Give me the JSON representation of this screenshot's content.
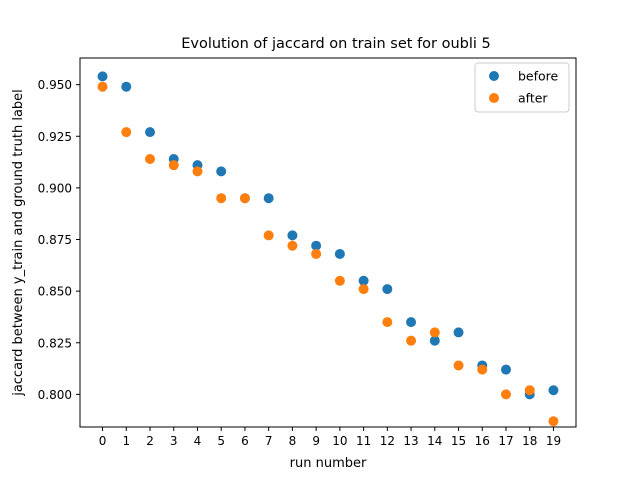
{
  "chart_data": {
    "type": "scatter",
    "title": "Evolution of jaccard on train set for oubli 5",
    "xlabel": "run number",
    "ylabel": "jaccard between y_train and ground truth label",
    "xlim": [
      -0.95,
      19.95
    ],
    "ylim": [
      0.7842,
      0.9629
    ],
    "xticks": [
      "0",
      "1",
      "2",
      "3",
      "4",
      "5",
      "6",
      "7",
      "8",
      "9",
      "10",
      "11",
      "12",
      "13",
      "14",
      "15",
      "16",
      "17",
      "18",
      "19"
    ],
    "yticks": [
      0.8,
      0.825,
      0.85,
      0.875,
      0.9,
      0.925,
      0.95
    ],
    "ytick_labels": [
      "0.800",
      "0.825",
      "0.850",
      "0.875",
      "0.900",
      "0.925",
      "0.950"
    ],
    "legend_position": "top-right",
    "grid": false,
    "series": [
      {
        "name": "before",
        "color": "#1f77b4",
        "x": [
          0,
          1,
          2,
          3,
          4,
          5,
          6,
          7,
          8,
          9,
          10,
          11,
          12,
          13,
          14,
          15,
          16,
          17,
          18,
          19
        ],
        "y": [
          0.954,
          0.949,
          0.927,
          0.914,
          0.911,
          0.908,
          0.895,
          0.895,
          0.877,
          0.872,
          0.868,
          0.855,
          0.851,
          0.835,
          0.826,
          0.83,
          0.814,
          0.812,
          0.8,
          0.802
        ]
      },
      {
        "name": "after",
        "color": "#ff7f0e",
        "x": [
          0,
          1,
          2,
          3,
          4,
          5,
          6,
          7,
          8,
          9,
          10,
          11,
          12,
          13,
          14,
          15,
          16,
          17,
          18,
          19
        ],
        "y": [
          0.949,
          0.927,
          0.914,
          0.911,
          0.908,
          0.895,
          0.895,
          0.877,
          0.872,
          0.868,
          0.855,
          0.851,
          0.835,
          0.826,
          0.83,
          0.814,
          0.812,
          0.8,
          0.802,
          0.787
        ]
      }
    ]
  }
}
